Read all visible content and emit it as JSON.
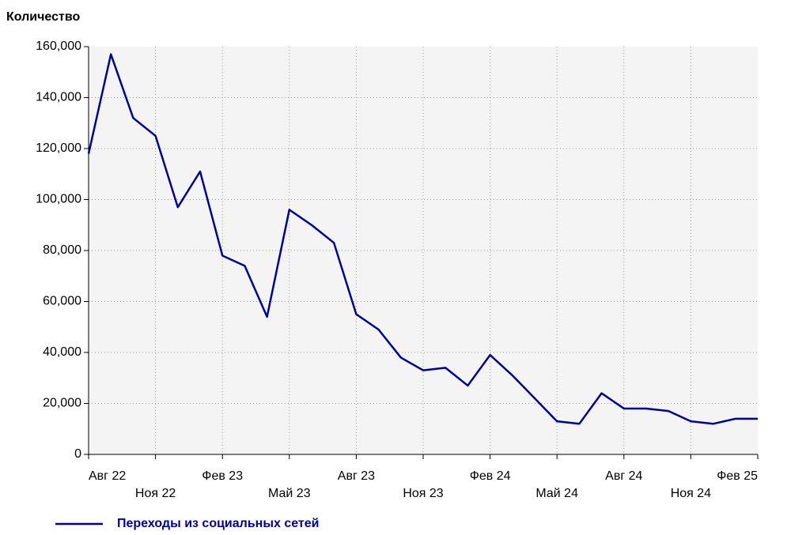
{
  "chart_data": {
    "type": "line",
    "y_label": "Количество",
    "categories": [
      "Авг 22",
      null,
      null,
      "Ноя 22",
      null,
      null,
      "Фев 23",
      null,
      null,
      "Май 23",
      null,
      null,
      "Авг 23",
      null,
      null,
      "Ноя 23",
      null,
      null,
      "Фев 24",
      null,
      null,
      "Май 24",
      null,
      null,
      "Авг 24",
      null,
      null,
      "Ноя 24",
      null,
      null,
      "Фев 25"
    ],
    "series": [
      {
        "name": "Переходы из социальных сетей",
        "color": "#000099",
        "values": [
          118000,
          157000,
          132000,
          125000,
          97000,
          111000,
          78000,
          74000,
          54000,
          96000,
          90000,
          83000,
          55000,
          49000,
          38000,
          33000,
          34000,
          27000,
          39000,
          31000,
          22000,
          13000,
          12000,
          24000,
          18000,
          18000,
          17000,
          13000,
          12000,
          14000,
          14000
        ]
      }
    ],
    "ylim": [
      0,
      160000
    ],
    "yticks": [
      0,
      {
        "value": 20000,
        "label": "20,000"
      },
      {
        "value": 40000,
        "label": "40,000"
      },
      {
        "value": 60000,
        "label": "60,000"
      },
      {
        "value": 80000,
        "label": "80,000"
      },
      {
        "value": 100000,
        "label": "100,000"
      },
      {
        "value": 120000,
        "label": "120,000"
      },
      {
        "value": 140000,
        "label": "140,000"
      },
      {
        "value": 160000,
        "label": "160,000"
      }
    ],
    "grid": true
  }
}
